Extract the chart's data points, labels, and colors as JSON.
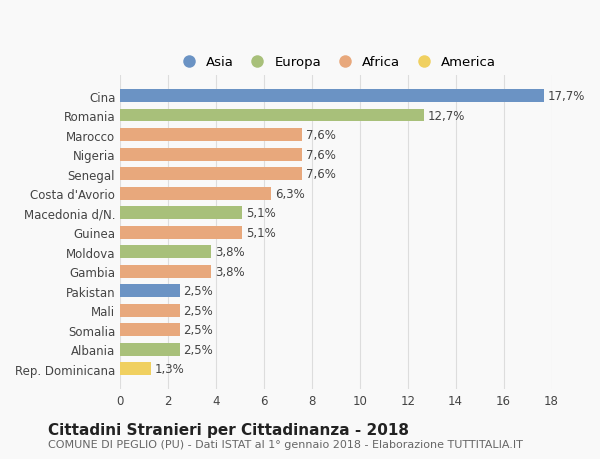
{
  "countries": [
    "Cina",
    "Romania",
    "Marocco",
    "Nigeria",
    "Senegal",
    "Costa d'Avorio",
    "Macedonia d/N.",
    "Guinea",
    "Moldova",
    "Gambia",
    "Pakistan",
    "Mali",
    "Somalia",
    "Albania",
    "Rep. Dominicana"
  ],
  "values": [
    17.7,
    12.7,
    7.6,
    7.6,
    7.6,
    6.3,
    5.1,
    5.1,
    3.8,
    3.8,
    2.5,
    2.5,
    2.5,
    2.5,
    1.3
  ],
  "labels": [
    "17,7%",
    "12,7%",
    "7,6%",
    "7,6%",
    "7,6%",
    "6,3%",
    "5,1%",
    "5,1%",
    "3,8%",
    "3,8%",
    "2,5%",
    "2,5%",
    "2,5%",
    "2,5%",
    "1,3%"
  ],
  "continents": [
    "Asia",
    "Europa",
    "Africa",
    "Africa",
    "Africa",
    "Africa",
    "Europa",
    "Africa",
    "Europa",
    "Africa",
    "Asia",
    "Africa",
    "Africa",
    "Europa",
    "America"
  ],
  "colors": {
    "Asia": "#6b93c4",
    "Europa": "#a8c07a",
    "Africa": "#e8a87c",
    "America": "#f0d060"
  },
  "legend_order": [
    "Asia",
    "Europa",
    "Africa",
    "America"
  ],
  "title": "Cittadini Stranieri per Cittadinanza - 2018",
  "subtitle": "COMUNE DI PEGLIO (PU) - Dati ISTAT al 1° gennaio 2018 - Elaborazione TUTTITALIA.IT",
  "xlim": [
    0,
    18
  ],
  "xticks": [
    0,
    2,
    4,
    6,
    8,
    10,
    12,
    14,
    16,
    18
  ],
  "background_color": "#f9f9f9",
  "grid_color": "#dddddd",
  "bar_height": 0.65,
  "label_fontsize": 8.5,
  "tick_fontsize": 8.5,
  "title_fontsize": 11,
  "subtitle_fontsize": 8
}
